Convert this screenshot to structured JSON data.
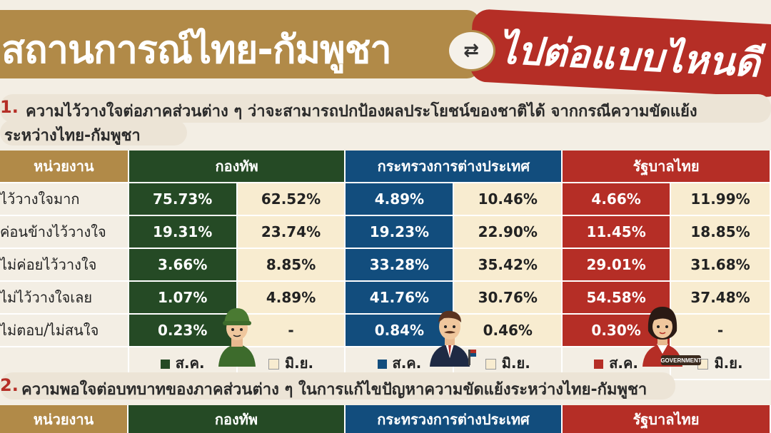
{
  "header": {
    "title_left": "สถานการณ์ไทย-กัมพูชา",
    "title_right": "ไปต่อแบบไหนดี",
    "swap_symbol": "⇄"
  },
  "question1": {
    "number": "1.",
    "line1": "ความไว้วางใจต่อภาคส่วนต่าง ๆ ว่าจะสามารถปกป้องผลประโยชน์ของชาติได้ จากกรณีความขัดแย้ง",
    "line2": "ระหว่างไทย-กัมพูชา"
  },
  "table1": {
    "unit_header": "หน่วยงาน",
    "groups": [
      "กองทัพ",
      "กระทรวงการต่างประเทศ",
      "รัฐบาลไทย"
    ],
    "rows": [
      {
        "label": "ไว้วางใจมาก",
        "values": [
          "75.73%",
          "62.52%",
          "4.89%",
          "10.46%",
          "4.66%",
          "11.99%"
        ]
      },
      {
        "label": "ค่อนข้างไว้วางใจ",
        "values": [
          "19.31%",
          "23.74%",
          "19.23%",
          "22.90%",
          "11.45%",
          "18.85%"
        ]
      },
      {
        "label": "ไม่ค่อยไว้วางใจ",
        "values": [
          "3.66%",
          "8.85%",
          "33.28%",
          "35.42%",
          "29.01%",
          "31.68%"
        ]
      },
      {
        "label": "ไม่ไว้วางใจเลย",
        "values": [
          "1.07%",
          "4.89%",
          "41.76%",
          "30.76%",
          "54.58%",
          "37.48%"
        ]
      },
      {
        "label": "ไม่ตอบ/ไม่สนใจ",
        "values": [
          "0.23%",
          "-",
          "0.84%",
          "0.46%",
          "0.30%",
          "-"
        ]
      }
    ],
    "legend": [
      "ส.ค.",
      "มิ.ย.",
      "ส.ค.",
      "มิ.ย.",
      "ส.ค.",
      "มิ.ย."
    ]
  },
  "question2": {
    "number": "2.",
    "line1": "ความพอใจต่อบทบาทของภาคส่วนต่าง ๆ ในการแก้ไขปัญหาความขัดแย้งระหว่างไทย-กัมพูชา"
  },
  "table2": {
    "unit_header": "หน่วยงาน",
    "groups": [
      "กองทัพ",
      "กระทรวงการต่างประเทศ",
      "รัฐบาลไทย"
    ]
  },
  "badge": {
    "government": "GOVERNMENT"
  },
  "colors": {
    "army": "#254a25",
    "mfa": "#124d7d",
    "gov": "#b52e26",
    "gold": "#b18a48",
    "light": "#f8ecd0"
  }
}
